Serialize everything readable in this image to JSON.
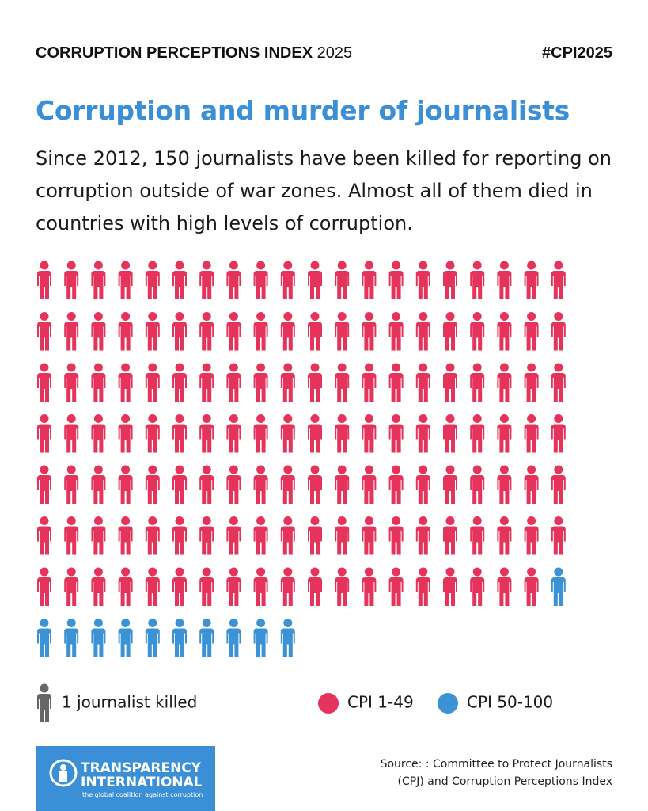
{
  "header": {
    "index_name": "CORRUPTION PERCEPTIONS INDEX",
    "year": "2025",
    "hashtag": "#CPI2025"
  },
  "chart_data": {
    "type": "waffle",
    "title": "Corruption and murder of journalists",
    "subtitle": "Since 2012, 150 journalists have been killed for reporting on corruption outside of war zones. Almost all of them died in countries with high levels of corruption.",
    "categories": [
      "CPI 1-49",
      "CPI 50-100"
    ],
    "values": [
      139,
      11
    ],
    "colors": [
      "#e5335b",
      "#3b92d4"
    ],
    "columns": 20,
    "unit_label": "1 journalist killed"
  },
  "footer": {
    "logo_line1": "TRANSPARENCY",
    "logo_line2": "INTERNATIONAL",
    "logo_tagline": "the global coalition against corruption",
    "source": "Source: : Committee to Protect Journalists (CPJ) and Corruption Perceptions Index"
  }
}
